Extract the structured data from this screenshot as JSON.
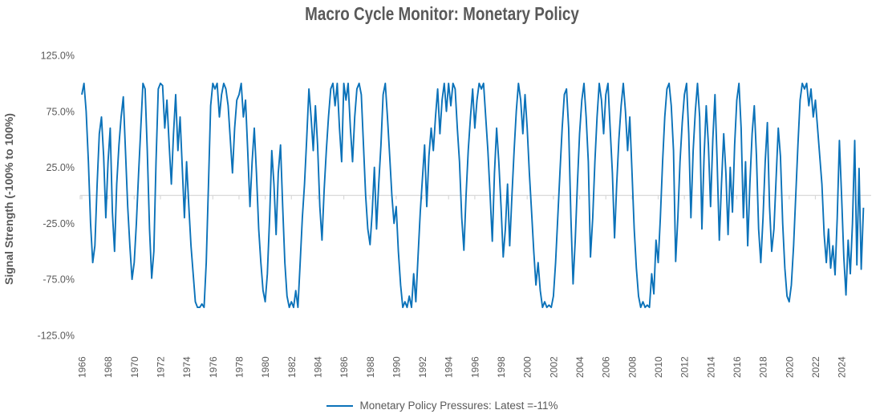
{
  "title": "Macro Cycle Monitor: Monetary Policy",
  "y_axis": {
    "title": "Signal Strength (-100% to 100%)",
    "tick_labels": [
      "125.0%",
      "75.0%",
      "25.0%",
      "-25.0%",
      "-75.0%",
      "-125.0%"
    ],
    "tick_values": [
      125,
      75,
      25,
      -25,
      -75,
      -125
    ]
  },
  "x_axis": {
    "tick_years": [
      1966,
      1968,
      1970,
      1972,
      1974,
      1976,
      1978,
      1980,
      1982,
      1984,
      1986,
      1988,
      1990,
      1992,
      1994,
      1996,
      1998,
      2000,
      2002,
      2004,
      2006,
      2008,
      2010,
      2012,
      2014,
      2016,
      2018,
      2020,
      2022,
      2024
    ]
  },
  "legend": {
    "label": "Monetary Policy Pressures: Latest =-11%",
    "series_name": "Monetary Policy Pressures",
    "latest_value": "-11%"
  },
  "colors": {
    "line": "#0B72B9",
    "axis": "#D9D9D9",
    "text": "#595959"
  },
  "chart_data": {
    "type": "line",
    "title": "Macro Cycle Monitor: Monetary Policy",
    "xlabel": "",
    "ylabel": "Signal Strength (-100% to 100%)",
    "ylim": [
      -125,
      125
    ],
    "xlim": [
      1966,
      2026.3
    ],
    "x_tick_step": 2,
    "grid": false,
    "legend_position": "bottom",
    "series": [
      {
        "name": "Monetary Policy Pressures",
        "latest": -11,
        "start_year": 1966,
        "points_per_year": 6,
        "unit": "percent",
        "values": [
          90,
          100,
          75,
          30,
          -25,
          -60,
          -45,
          10,
          55,
          70,
          35,
          -20,
          30,
          60,
          -15,
          -50,
          10,
          45,
          70,
          88,
          40,
          -10,
          -45,
          -75,
          -60,
          -25,
          20,
          60,
          100,
          95,
          40,
          -30,
          -74,
          -50,
          30,
          95,
          100,
          98,
          60,
          85,
          45,
          10,
          55,
          90,
          40,
          70,
          25,
          -20,
          30,
          -10,
          -45,
          -70,
          -95,
          -100,
          -100,
          -97,
          -100,
          -60,
          10,
          80,
          100,
          95,
          100,
          70,
          90,
          100,
          95,
          80,
          50,
          20,
          60,
          85,
          90,
          100,
          70,
          85,
          40,
          -10,
          30,
          60,
          20,
          -30,
          -60,
          -85,
          -95,
          -70,
          -20,
          40,
          10,
          -35,
          20,
          45,
          -10,
          -60,
          -90,
          -100,
          -95,
          -100,
          -85,
          -100,
          -60,
          -20,
          10,
          50,
          95,
          70,
          40,
          80,
          45,
          -10,
          -40,
          5,
          40,
          70,
          95,
          100,
          80,
          100,
          60,
          30,
          100,
          85,
          100,
          60,
          30,
          70,
          95,
          100,
          90,
          45,
          0,
          -30,
          -44,
          -15,
          25,
          -30,
          10,
          45,
          90,
          100,
          70,
          35,
          0,
          -25,
          -10,
          -50,
          -80,
          -100,
          -95,
          -100,
          -90,
          -100,
          -70,
          -95,
          -55,
          -15,
          15,
          45,
          -10,
          35,
          60,
          40,
          70,
          95,
          55,
          85,
          100,
          75,
          100,
          80,
          100,
          95,
          60,
          30,
          -20,
          -49,
          0,
          40,
          70,
          95,
          60,
          85,
          100,
          95,
          100,
          70,
          40,
          0,
          -41,
          20,
          60,
          30,
          -10,
          -55,
          -30,
          10,
          -45,
          0,
          40,
          75,
          100,
          85,
          55,
          90,
          60,
          20,
          -15,
          -50,
          -80,
          -60,
          -85,
          -100,
          -95,
          -100,
          -98,
          -100,
          -90,
          -60,
          -20,
          20,
          60,
          90,
          95,
          60,
          -20,
          -79,
          -40,
          10,
          55,
          85,
          100,
          70,
          30,
          -55,
          -20,
          30,
          70,
          100,
          85,
          55,
          90,
          100,
          60,
          20,
          -38,
          10,
          50,
          80,
          100,
          75,
          40,
          70,
          20,
          -30,
          -65,
          -90,
          -100,
          -95,
          -100,
          -98,
          -100,
          -70,
          -88,
          -40,
          -60,
          -20,
          30,
          70,
          95,
          100,
          80,
          40,
          -59,
          -20,
          30,
          65,
          90,
          100,
          55,
          -20,
          40,
          75,
          100,
          70,
          -30,
          35,
          80,
          45,
          -10,
          50,
          90,
          30,
          -40,
          10,
          55,
          20,
          -35,
          25,
          -15,
          45,
          85,
          100,
          60,
          -20,
          30,
          -45,
          10,
          55,
          80,
          35,
          -30,
          -60,
          -20,
          30,
          65,
          -10,
          -50,
          -30,
          15,
          60,
          35,
          -25,
          -65,
          -90,
          -95,
          -80,
          -45,
          0,
          45,
          85,
          100,
          95,
          100,
          80,
          95,
          70,
          85,
          60,
          35,
          10,
          -35,
          -60,
          -30,
          -65,
          -45,
          -71,
          -20,
          49,
          0,
          -55,
          -89,
          -40,
          -70,
          -25,
          49,
          -62,
          24,
          -66,
          -11
        ]
      }
    ]
  }
}
